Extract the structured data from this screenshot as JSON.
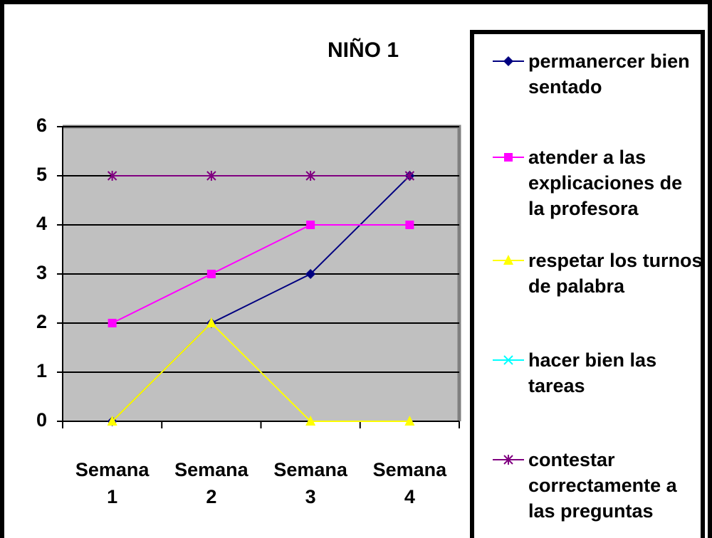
{
  "chart_data": {
    "type": "line",
    "title": "NIÑO 1",
    "categories": [
      "Semana 1",
      "Semana 2",
      "Semana 3",
      "Semana 4"
    ],
    "series": [
      {
        "name": "permanercer bien sentado",
        "color": "#000080",
        "marker": "diamond",
        "values": [
          0,
          2,
          3,
          5
        ]
      },
      {
        "name": "atender a las explicaciones de la profesora",
        "color": "#ff00ff",
        "marker": "square",
        "values": [
          2,
          3,
          4,
          4
        ]
      },
      {
        "name": "respetar los turnos de palabra",
        "color": "#ffff00",
        "marker": "triangle",
        "values": [
          0,
          2,
          0,
          0
        ]
      },
      {
        "name": "hacer bien las tareas",
        "color": "#00ffff",
        "marker": "x",
        "values": [
          null,
          null,
          null,
          null
        ]
      },
      {
        "name": "contestar correctamente a las preguntas",
        "color": "#800080",
        "marker": "asterisk",
        "values": [
          5,
          5,
          5,
          5
        ]
      }
    ],
    "ylim": [
      0,
      6
    ],
    "yticks": [
      0,
      1,
      2,
      3,
      4,
      5,
      6
    ],
    "grid": true,
    "legend": "right"
  }
}
